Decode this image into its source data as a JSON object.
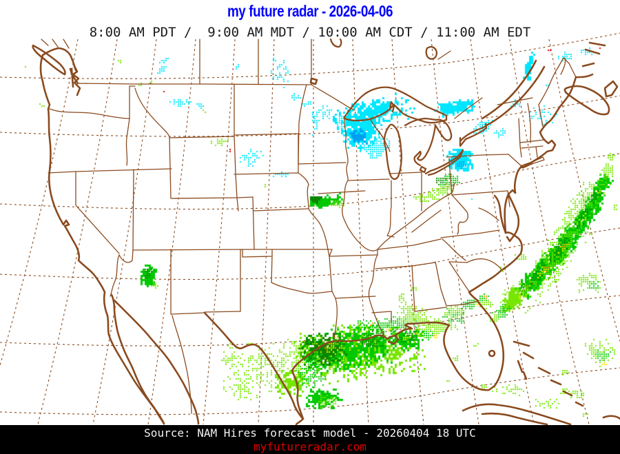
{
  "title": {
    "text": "my future radar - 2026-04-06",
    "color": "#0000ff"
  },
  "subtitle": {
    "text": "8:00 AM PDT /  9:00 AM MDT / 10:00 AM CDT / 11:00 AM EDT"
  },
  "footer": {
    "source": "Source: NAM Hires forecast model - 20260404 18 UTC",
    "website": "myfutureradar.com",
    "bar_color": "#000000",
    "source_color": "#f2f2f2",
    "website_color": "#e10000"
  },
  "map": {
    "region": "Continental United States",
    "line_color": "#8a4a1e",
    "background": "#ffffff"
  },
  "precip": {
    "seed": 1337,
    "palette": {
      "c1": "#00e6ff",
      "c2": "#00a0f0",
      "g1": "#77e600",
      "g2": "#00c800",
      "g3": "#0a8702",
      "yl": "#ffe400",
      "or": "#ff9a00",
      "rd": "#e00000"
    },
    "blobs": [
      [
        540,
        162,
        62,
        20,
        -12,
        380,
        "c1",
        3
      ],
      [
        523,
        190,
        30,
        26,
        -20,
        360,
        "c1",
        3
      ],
      [
        519,
        197,
        13,
        11,
        0,
        80,
        "c2",
        3
      ],
      [
        546,
        214,
        22,
        16,
        -30,
        150,
        "c1",
        2
      ],
      [
        497,
        176,
        12,
        9,
        0,
        45,
        "c1",
        2
      ],
      [
        470,
        161,
        13,
        12,
        0,
        24,
        "c1",
        2
      ],
      [
        445,
        150,
        8,
        6,
        0,
        10,
        "c1",
        2
      ],
      [
        408,
        253,
        15,
        4,
        0,
        20,
        "c1",
        2
      ],
      [
        660,
        155,
        32,
        10,
        -8,
        190,
        "c1",
        3
      ],
      [
        700,
        184,
        18,
        8,
        -20,
        55,
        "c1",
        2
      ],
      [
        725,
        192,
        12,
        6,
        -15,
        25,
        "c1",
        2
      ],
      [
        668,
        231,
        20,
        17,
        0,
        220,
        "c1",
        3
      ],
      [
        667,
        238,
        9,
        6,
        0,
        40,
        "c2",
        2
      ],
      [
        652,
        261,
        16,
        10,
        -10,
        110,
        "g2",
        2
      ],
      [
        641,
        277,
        20,
        9,
        -15,
        80,
        "g1",
        2
      ],
      [
        618,
        286,
        22,
        7,
        -5,
        35,
        "g1",
        2
      ],
      [
        637,
        262,
        9,
        5,
        0,
        25,
        "g3",
        2
      ],
      [
        788,
        168,
        25,
        15,
        0,
        35,
        "c1",
        2
      ],
      [
        766,
        96,
        6,
        25,
        10,
        75,
        "c1",
        3
      ],
      [
        748,
        150,
        8,
        6,
        0,
        18,
        "c1",
        2
      ],
      [
        793,
        123,
        4,
        3,
        0,
        6,
        "c1",
        2
      ],
      [
        820,
        82,
        12,
        8,
        0,
        26,
        "c1",
        2
      ],
      [
        851,
        74,
        11,
        6,
        0,
        16,
        "c1",
        2
      ],
      [
        871,
        68,
        2,
        2,
        0,
        3,
        "rd",
        2
      ],
      [
        797,
        73,
        2,
        2,
        0,
        2,
        "rd",
        2
      ],
      [
        405,
        107,
        16,
        24,
        0,
        32,
        "c1",
        2
      ],
      [
        428,
        140,
        9,
        7,
        0,
        12,
        "c1",
        2
      ],
      [
        342,
        96,
        5,
        4,
        0,
        6,
        "c1",
        2
      ],
      [
        458,
        176,
        8,
        18,
        0,
        36,
        "c1",
        2
      ],
      [
        362,
        228,
        24,
        13,
        0,
        36,
        "c1",
        2
      ],
      [
        318,
        205,
        15,
        7,
        0,
        24,
        "g1",
        2
      ],
      [
        333,
        217,
        2,
        2,
        0,
        2,
        "rd",
        2
      ],
      [
        235,
        96,
        6,
        18,
        15,
        36,
        "c1",
        2
      ],
      [
        262,
        148,
        20,
        6,
        0,
        36,
        "c1",
        2
      ],
      [
        288,
        152,
        7,
        4,
        0,
        9,
        "c1",
        2
      ],
      [
        218,
        120,
        4,
        3,
        0,
        5,
        "g1",
        2
      ],
      [
        172,
        88,
        4,
        3,
        0,
        5,
        "g1",
        2
      ],
      [
        238,
        133,
        2,
        2,
        0,
        2,
        "rd",
        2
      ],
      [
        205,
        123,
        4,
        3,
        0,
        4,
        "g1",
        2
      ],
      [
        37,
        95,
        3,
        4,
        0,
        4,
        "g1",
        2
      ],
      [
        60,
        152,
        3,
        3,
        0,
        4,
        "g1",
        2
      ],
      [
        472,
        291,
        25,
        8,
        -10,
        150,
        "g2",
        3
      ],
      [
        456,
        288,
        9,
        6,
        0,
        55,
        "g3",
        3
      ],
      [
        489,
        294,
        11,
        5,
        0,
        45,
        "g1",
        2
      ],
      [
        213,
        400,
        12,
        18,
        15,
        120,
        "g2",
        3
      ],
      [
        212,
        397,
        6,
        9,
        15,
        35,
        "g3",
        2
      ],
      [
        222,
        413,
        6,
        5,
        0,
        18,
        "g1",
        2
      ],
      [
        520,
        509,
        98,
        44,
        -7,
        820,
        "g1",
        3
      ],
      [
        508,
        505,
        70,
        33,
        -8,
        600,
        "g2",
        3
      ],
      [
        467,
        507,
        35,
        25,
        -5,
        300,
        "g3",
        3
      ],
      [
        540,
        492,
        19,
        13,
        0,
        80,
        "g3",
        2
      ],
      [
        589,
        492,
        25,
        16,
        0,
        140,
        "g2",
        3
      ],
      [
        592,
        489,
        14,
        9,
        0,
        60,
        "g3",
        2
      ],
      [
        482,
        506,
        40,
        23,
        -5,
        55,
        "yl",
        2
      ],
      [
        477,
        500,
        18,
        11,
        0,
        9,
        "or",
        2
      ],
      [
        588,
        489,
        8,
        5,
        0,
        12,
        "yl",
        2
      ],
      [
        630,
        488,
        4,
        3,
        0,
        7,
        "yl",
        2
      ],
      [
        628,
        486,
        2,
        2,
        0,
        3,
        "or",
        2
      ],
      [
        560,
        472,
        54,
        13,
        -4,
        210,
        "g2",
        2
      ],
      [
        600,
        462,
        28,
        9,
        10,
        100,
        "g1",
        2
      ],
      [
        640,
        470,
        24,
        9,
        0,
        80,
        "g1",
        2
      ],
      [
        658,
        458,
        18,
        11,
        20,
        70,
        "g2",
        2
      ],
      [
        540,
        470,
        3,
        2,
        0,
        3,
        "or",
        2
      ],
      [
        565,
        477,
        5,
        3,
        0,
        7,
        "yl",
        2
      ],
      [
        592,
        448,
        13,
        9,
        0,
        50,
        "g1",
        2
      ],
      [
        612,
        452,
        9,
        6,
        0,
        26,
        "g1",
        2
      ],
      [
        583,
        432,
        6,
        8,
        0,
        18,
        "g1",
        2
      ],
      [
        600,
        418,
        5,
        5,
        0,
        9,
        "g1",
        2
      ],
      [
        385,
        530,
        62,
        43,
        0,
        230,
        "g1",
        2
      ],
      [
        420,
        555,
        27,
        21,
        0,
        140,
        "g1",
        3
      ],
      [
        450,
        545,
        24,
        19,
        0,
        110,
        "g2",
        2
      ],
      [
        468,
        577,
        29,
        15,
        0,
        140,
        "g2",
        3
      ],
      [
        473,
        581,
        17,
        9,
        0,
        55,
        "g1",
        2
      ],
      [
        438,
        512,
        27,
        21,
        0,
        130,
        "g1",
        2
      ],
      [
        452,
        522,
        15,
        11,
        0,
        55,
        "g2",
        2
      ],
      [
        350,
        560,
        28,
        23,
        0,
        55,
        "g1",
        2
      ],
      [
        331,
        521,
        18,
        13,
        0,
        26,
        "g1",
        2
      ],
      [
        625,
        478,
        24,
        11,
        -10,
        100,
        "g1",
        2
      ],
      [
        618,
        486,
        11,
        7,
        0,
        35,
        "g2",
        2
      ],
      [
        660,
        452,
        17,
        9,
        -20,
        60,
        "g1",
        2
      ],
      [
        680,
        442,
        14,
        8,
        -25,
        70,
        "g2",
        2
      ],
      [
        700,
        432,
        11,
        7,
        -30,
        55,
        "g2",
        2
      ],
      [
        690,
        440,
        5,
        3,
        0,
        6,
        "yl",
        2
      ],
      [
        704,
        430,
        3,
        2,
        0,
        3,
        "or",
        2
      ],
      [
        745,
        432,
        24,
        14,
        -50,
        180,
        "g1",
        3
      ],
      [
        770,
        408,
        25,
        14,
        -50,
        220,
        "g2",
        3
      ],
      [
        795,
        381,
        27,
        15,
        -52,
        240,
        "g2",
        3
      ],
      [
        820,
        352,
        27,
        15,
        -52,
        240,
        "g2",
        3
      ],
      [
        843,
        322,
        25,
        14,
        -54,
        220,
        "g2",
        3
      ],
      [
        860,
        295,
        23,
        13,
        -56,
        200,
        "g2",
        3
      ],
      [
        872,
        268,
        19,
        11,
        -58,
        150,
        "g2",
        3
      ],
      [
        881,
        247,
        13,
        9,
        -60,
        80,
        "g1",
        2
      ],
      [
        800,
        380,
        88,
        25,
        -53,
        420,
        "g1",
        2
      ],
      [
        845,
        300,
        58,
        21,
        -55,
        260,
        "g1",
        2
      ],
      [
        782,
        395,
        19,
        8,
        -52,
        70,
        "g3",
        2
      ],
      [
        812,
        362,
        21,
        8,
        -53,
        80,
        "g3",
        2
      ],
      [
        845,
        315,
        19,
        7,
        -55,
        70,
        "g3",
        2
      ],
      [
        862,
        285,
        13,
        6,
        -56,
        45,
        "g3",
        2
      ],
      [
        758,
        420,
        11,
        6,
        -50,
        35,
        "g3",
        2
      ],
      [
        760,
        420,
        15,
        5,
        -50,
        20,
        "yl",
        2
      ],
      [
        788,
        392,
        15,
        5,
        -52,
        16,
        "yl",
        2
      ],
      [
        815,
        360,
        15,
        5,
        -53,
        13,
        "yl",
        2
      ],
      [
        845,
        318,
        11,
        4,
        -55,
        9,
        "yl",
        2
      ],
      [
        868,
        275,
        7,
        4,
        -56,
        5,
        "yl",
        2
      ],
      [
        765,
        415,
        9,
        4,
        -50,
        5,
        "or",
        2
      ],
      [
        792,
        388,
        7,
        3,
        -52,
        4,
        "or",
        2
      ],
      [
        770,
        410,
        2,
        2,
        0,
        2,
        "rd",
        2
      ],
      [
        820,
        355,
        5,
        3,
        0,
        3,
        "or",
        2
      ],
      [
        728,
        452,
        15,
        9,
        -45,
        80,
        "g2",
        2
      ],
      [
        718,
        461,
        10,
        6,
        -40,
        35,
        "g1",
        2
      ],
      [
        740,
        428,
        20,
        13,
        -45,
        60,
        "g1",
        2
      ],
      [
        700,
        441,
        16,
        9,
        0,
        35,
        "g1",
        2
      ],
      [
        755,
        372,
        9,
        5,
        0,
        13,
        "g1",
        2
      ],
      [
        730,
        390,
        7,
        4,
        0,
        9,
        "g1",
        2
      ],
      [
        855,
        408,
        20,
        15,
        0,
        60,
        "g1",
        2
      ],
      [
        862,
        414,
        11,
        7,
        0,
        26,
        "g2",
        2
      ],
      [
        870,
        510,
        24,
        20,
        0,
        80,
        "g1",
        2
      ],
      [
        875,
        515,
        13,
        9,
        0,
        30,
        "g2",
        2
      ],
      [
        877,
        527,
        5,
        3,
        0,
        5,
        "yl",
        2
      ],
      [
        735,
        565,
        28,
        9,
        0,
        35,
        "g1",
        2
      ],
      [
        795,
        585,
        22,
        7,
        0,
        26,
        "g1",
        2
      ],
      [
        838,
        571,
        14,
        7,
        0,
        22,
        "g1",
        2
      ],
      [
        822,
        539,
        9,
        5,
        0,
        10,
        "g1",
        2
      ],
      [
        885,
        226,
        7,
        9,
        0,
        13,
        "g1",
        2
      ],
      [
        893,
        300,
        4,
        7,
        0,
        7,
        "g1",
        2
      ],
      [
        612,
        285,
        13,
        4,
        0,
        15,
        "g1",
        2
      ],
      [
        685,
        288,
        2,
        2,
        0,
        2,
        "c1",
        2
      ],
      [
        660,
        520,
        6,
        4,
        0,
        7,
        "g1",
        2
      ],
      [
        700,
        560,
        7,
        4,
        0,
        8,
        "g1",
        2
      ],
      [
        648,
        552,
        4,
        3,
        0,
        4,
        "g1",
        2
      ],
      [
        690,
        500,
        4,
        3,
        0,
        5,
        "g1",
        2
      ],
      [
        820,
        568,
        16,
        5,
        0,
        16,
        "g1",
        2
      ],
      [
        850,
        600,
        7,
        3,
        0,
        6,
        "g1",
        2
      ],
      [
        383,
        268,
        3,
        2,
        0,
        3,
        "g1",
        2
      ],
      [
        296,
        160,
        3,
        2,
        0,
        3,
        "g1",
        2
      ]
    ]
  }
}
